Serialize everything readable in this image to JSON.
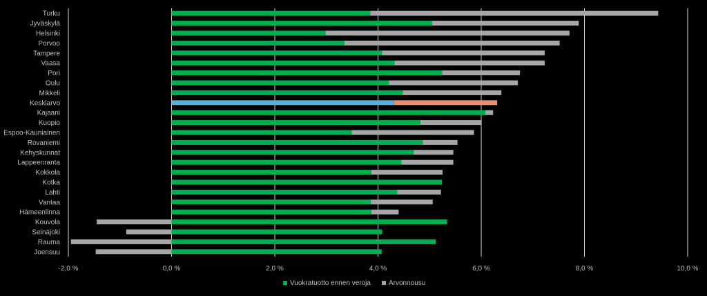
{
  "chart_data": {
    "type": "bar",
    "orientation": "horizontal",
    "stacked": true,
    "categories": [
      "Turku",
      "Jyväskylä",
      "Helsinki",
      "Porvoo",
      "Tampere",
      "Vaasa",
      "Pori",
      "Oulu",
      "Mikkeli",
      "Keskiarvo",
      "Kajaani",
      "Kuopio",
      "Espoo-Kauniainen",
      "Rovaniemi",
      "Kehyskunnat",
      "Lappeenranta",
      "Kokkola",
      "Kotka",
      "Lahti",
      "Vantaa",
      "Hämeenlinna",
      "Kouvola",
      "Seinäjoki",
      "Rauma",
      "Joensuu"
    ],
    "series": [
      {
        "name": "Vuokratuotto ennen veroja",
        "color": "#00b050",
        "values": [
          3.85,
          5.05,
          2.98,
          3.35,
          4.08,
          4.32,
          5.24,
          4.21,
          4.48,
          4.31,
          6.08,
          4.82,
          3.49,
          4.87,
          4.69,
          4.45,
          3.87,
          5.24,
          4.37,
          3.86,
          3.87,
          5.34,
          4.08,
          5.12,
          4.07
        ]
      },
      {
        "name": "Arvonnousu",
        "color": "#a6a6a6",
        "values": [
          5.58,
          2.84,
          4.73,
          4.17,
          3.15,
          2.91,
          1.51,
          2.5,
          1.91,
          2.0,
          0.15,
          1.19,
          2.37,
          0.67,
          0.77,
          1.01,
          1.38,
          0.0,
          0.85,
          1.2,
          0.53,
          -1.45,
          -0.88,
          -1.95,
          -1.47
        ]
      }
    ],
    "highlight": {
      "category": "Keskiarvo",
      "colors": [
        "#5aafda",
        "#ec8e6b"
      ]
    },
    "xlim": [
      -2.0,
      10.0
    ],
    "x_ticks": [
      -2,
      0,
      2,
      4,
      6,
      8,
      10
    ],
    "x_tick_labels": [
      "-2,0 %",
      "0,0 %",
      "2,0 %",
      "4,0 %",
      "6,0 %",
      "8,0 %",
      "10,0 %"
    ],
    "grid": "vertical",
    "legend_position": "bottom",
    "title": "",
    "xlabel": "",
    "ylabel": ""
  },
  "legend": {
    "items": [
      {
        "label": "Vuokratuotto ennen veroja",
        "color": "#00b050"
      },
      {
        "label": "Arvonnousu",
        "color": "#a6a6a6"
      }
    ]
  },
  "colors": {
    "background": "#000000",
    "grid": "#d9d9d9",
    "text": "#bfbfbf"
  }
}
